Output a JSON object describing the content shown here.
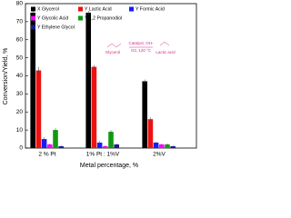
{
  "chart_data": {
    "type": "bar",
    "categories": [
      "2 % Pt",
      "1% Pt : 1%V",
      "2%V"
    ],
    "xlabel": "Metal percentage, %",
    "ylabel": "Conversion/Yield, %",
    "ylim": [
      0,
      80
    ],
    "yticks": [
      0,
      10,
      20,
      30,
      40,
      50,
      60,
      70,
      80
    ],
    "series": [
      {
        "name": "X Glycerol",
        "color": "#000000",
        "values": [
          75,
          75,
          37
        ],
        "errors": [
          1,
          1,
          1
        ]
      },
      {
        "name": "Y Lactic Acid",
        "color": "#ee1111",
        "values": [
          43,
          45,
          16
        ],
        "errors": [
          2,
          1,
          1
        ]
      },
      {
        "name": "Y Formic Acid",
        "color": "#1a1aff",
        "values": [
          5,
          3,
          3
        ],
        "errors": [
          1,
          1,
          0.5
        ]
      },
      {
        "name": "Y Glycolic Acid",
        "color": "#ff00ff",
        "values": [
          2,
          1,
          2
        ],
        "errors": [
          0.5,
          0.5,
          0.5
        ]
      },
      {
        "name": "Y 1,2 Propanodiol",
        "color": "#119911",
        "values": [
          10,
          9,
          2
        ],
        "errors": [
          1,
          1,
          0.5
        ]
      },
      {
        "name": "Y Ethylene Glycol",
        "color": "#1a1a8c",
        "values": [
          1,
          2,
          1
        ],
        "errors": [
          0.5,
          0.5,
          0.5
        ]
      }
    ],
    "annotations": [
      "Glycerol",
      "Catalyst, OH-",
      "O2, 120 °C",
      "Lactic acid"
    ]
  }
}
